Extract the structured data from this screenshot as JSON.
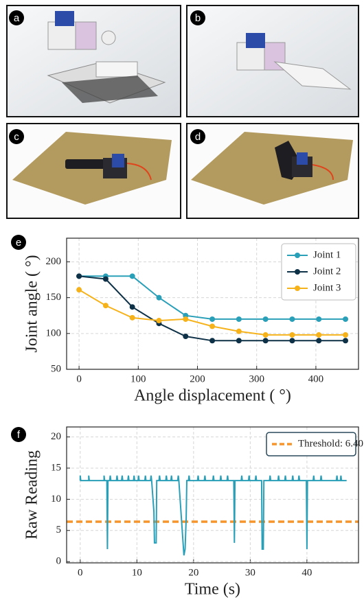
{
  "panels": [
    {
      "label": "a"
    },
    {
      "label": "b"
    },
    {
      "label": "c"
    },
    {
      "label": "d"
    }
  ],
  "chart_data": [
    {
      "type": "line",
      "panel_label": "e",
      "ylabel": "Joint angle ( °)",
      "xlabel": "Angle displacement ( °)",
      "x": [
        0,
        45,
        90,
        135,
        180,
        225,
        270,
        315,
        360,
        405,
        450
      ],
      "series": [
        {
          "name": "Joint 1",
          "color": "#2a9fb8",
          "values": [
            180,
            180,
            180,
            150,
            125,
            120,
            120,
            120,
            120,
            120,
            120
          ]
        },
        {
          "name": "Joint 2",
          "color": "#0e3147",
          "values": [
            180,
            176,
            137,
            114,
            96,
            90,
            90,
            90,
            90,
            90,
            90
          ]
        },
        {
          "name": "Joint 3",
          "color": "#f6b21b",
          "values": [
            161,
            139,
            122,
            118,
            120,
            110,
            103,
            98,
            98,
            98,
            98
          ]
        }
      ],
      "markers": true,
      "xlim": [
        -21,
        472
      ],
      "ylim": [
        50,
        233
      ],
      "xticks": [
        0,
        100,
        200,
        300,
        400
      ],
      "yticks": [
        50,
        100,
        150,
        200
      ],
      "grid": true,
      "legend": "upper right"
    },
    {
      "type": "line",
      "panel_label": "f",
      "ylabel": "Raw Reading",
      "xlabel": "Time (s)",
      "series": [
        {
          "color": "#2a9fb8",
          "x": [
            0,
            0,
            0.1,
            1.5,
            1.5,
            1.6,
            4.2,
            4.2,
            4.3,
            4.7,
            4.8,
            4.9,
            5.2,
            5.3,
            5.4,
            6.4,
            6.5,
            6.6,
            7.3,
            7.4,
            7.5,
            8.4,
            8.5,
            8.6,
            9.4,
            9.5,
            9.6,
            10.2,
            10.3,
            10.4,
            11.4,
            11.5,
            11.6,
            12.4,
            12.5,
            12.6,
            13,
            13.1,
            13.4,
            13.5,
            13.9,
            14,
            14.1,
            15.1,
            15.2,
            15.3,
            16,
            16.1,
            16.2,
            17.2,
            17.3,
            17.4,
            18.3,
            18.5,
            18.7,
            18.8,
            19.1,
            19.2,
            19.3,
            20.7,
            20.8,
            20.9,
            21.9,
            22,
            22.1,
            23.4,
            23.5,
            23.6,
            24.7,
            24.8,
            24.9,
            25.9,
            26,
            26.1,
            27.1,
            27.2,
            27.3,
            28.4,
            28.5,
            28.6,
            29.7,
            29.8,
            29.9,
            30.9,
            31,
            31.1,
            32,
            32.1,
            32.3,
            32.4,
            33.4,
            33.5,
            33.6,
            34.9,
            35,
            35.1,
            36.1,
            36.2,
            36.3,
            37.4,
            37.5,
            37.6,
            38.5,
            38.6,
            38.7,
            39.9,
            40,
            40.1,
            41.1,
            41.2,
            41.3,
            42.4,
            42.5,
            42.6,
            45.2,
            45.3,
            45.4,
            45.9,
            46,
            46.1,
            47
          ],
          "values": [
            13,
            13.8,
            13,
            13,
            13.8,
            13,
            13,
            13.8,
            13,
            13,
            2,
            13,
            13,
            13.8,
            13,
            13,
            13.8,
            13,
            13,
            13.8,
            13,
            13,
            13.8,
            13,
            13,
            13.8,
            13,
            13,
            13.8,
            13,
            13,
            13.8,
            13,
            13,
            13.8,
            13,
            8,
            3,
            3,
            13,
            13,
            13.8,
            13,
            13,
            13.8,
            13,
            13,
            13.8,
            13,
            13,
            13.8,
            13,
            1,
            2,
            7,
            13,
            13,
            13.8,
            13,
            13,
            13.8,
            13,
            13,
            13.8,
            13,
            13,
            13.8,
            13,
            13,
            13.8,
            13,
            13,
            13.8,
            13,
            13,
            3,
            13,
            13,
            13.8,
            13,
            13,
            13.8,
            13,
            13,
            13.8,
            13,
            13,
            2,
            2,
            13,
            13,
            13.8,
            13,
            13,
            13.8,
            13,
            13,
            13.8,
            13,
            13,
            13.8,
            13,
            13,
            13.8,
            13,
            13,
            2,
            13,
            13,
            13.8,
            13,
            13,
            13.8,
            13,
            13,
            13.8,
            13,
            13,
            13.8,
            13,
            13
          ]
        }
      ],
      "reference_line": {
        "value": 6.4,
        "label": "Threshold: 6.40",
        "color": "#f5952c"
      },
      "markers": false,
      "xlim": [
        -2.4,
        49.1
      ],
      "ylim": [
        -0.2,
        21.6
      ],
      "xticks": [
        0,
        10,
        20,
        30,
        40
      ],
      "yticks": [
        0,
        5,
        10,
        15,
        20
      ],
      "grid": true,
      "legend": "upper right"
    }
  ]
}
